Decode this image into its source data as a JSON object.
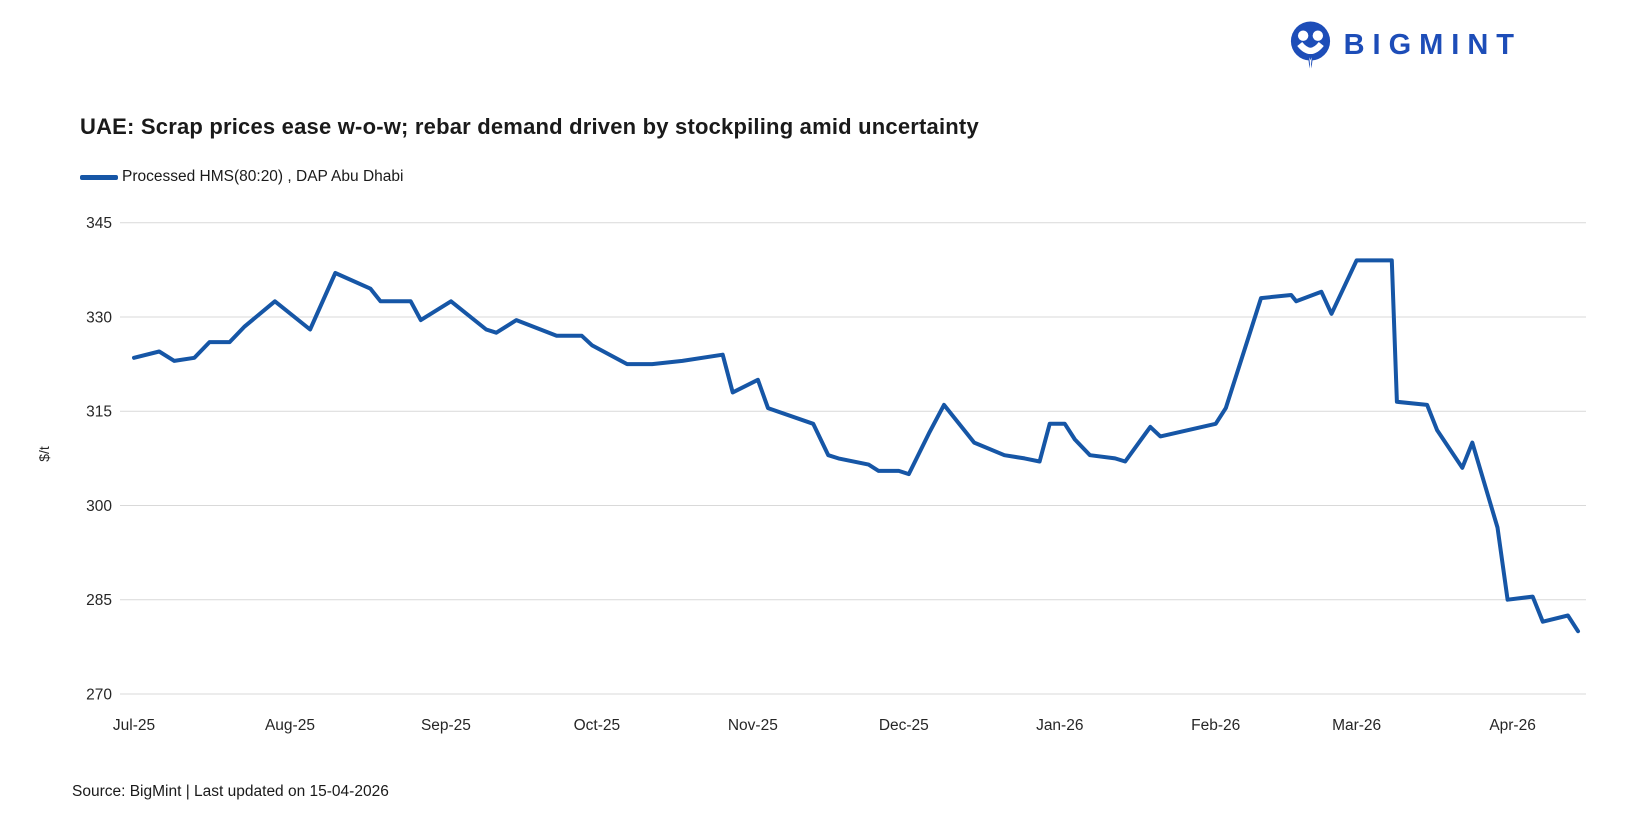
{
  "logo": {
    "text": "BIGMINT",
    "color": "#1d4db8",
    "icon": "bigmint-mascot-icon"
  },
  "chart": {
    "title": "UAE: Scrap prices ease w-o-w; rebar demand driven by stockpiling amid uncertainty",
    "legend": {
      "label": "Processed HMS(80:20) , DAP Abu Dhabi",
      "swatch_color": "#1656a6"
    },
    "ylabel": "$/t",
    "source_note": "Source: BigMint | Last updated on 15-04-2026"
  },
  "chart_data": {
    "type": "line",
    "title": "UAE: Scrap prices ease w-o-w; rebar demand driven by stockpiling amid uncertainty",
    "xlabel": "",
    "ylabel": "$/t",
    "ylim": [
      270,
      345
    ],
    "y_ticks": [
      270,
      285,
      300,
      315,
      330,
      345
    ],
    "x_ticks": [
      {
        "label": "Jul-25",
        "date": "2025-07-01"
      },
      {
        "label": "Aug-25",
        "date": "2025-08-01"
      },
      {
        "label": "Sep-25",
        "date": "2025-09-01"
      },
      {
        "label": "Oct-25",
        "date": "2025-10-01"
      },
      {
        "label": "Nov-25",
        "date": "2025-11-01"
      },
      {
        "label": "Dec-25",
        "date": "2025-12-01"
      },
      {
        "label": "Jan-26",
        "date": "2026-01-01"
      },
      {
        "label": "Feb-26",
        "date": "2026-02-01"
      },
      {
        "label": "Mar-26",
        "date": "2026-03-01"
      },
      {
        "label": "Apr-26",
        "date": "2026-04-01"
      }
    ],
    "x_domain": [
      "2025-07-01",
      "2026-04-14"
    ],
    "grid": "horizontal",
    "legend_position": "top-left",
    "line_color": "#1656a6",
    "series": [
      {
        "name": "Processed HMS(80:20) , DAP Abu Dhabi",
        "points": [
          {
            "date": "2025-07-01",
            "value": 323.5
          },
          {
            "date": "2025-07-06",
            "value": 324.5
          },
          {
            "date": "2025-07-09",
            "value": 323
          },
          {
            "date": "2025-07-13",
            "value": 323.5
          },
          {
            "date": "2025-07-16",
            "value": 326
          },
          {
            "date": "2025-07-20",
            "value": 326
          },
          {
            "date": "2025-07-23",
            "value": 328.5
          },
          {
            "date": "2025-07-29",
            "value": 332.5
          },
          {
            "date": "2025-08-05",
            "value": 328
          },
          {
            "date": "2025-08-10",
            "value": 337
          },
          {
            "date": "2025-08-17",
            "value": 334.5
          },
          {
            "date": "2025-08-19",
            "value": 332.5
          },
          {
            "date": "2025-08-25",
            "value": 332.5
          },
          {
            "date": "2025-08-27",
            "value": 329.5
          },
          {
            "date": "2025-09-02",
            "value": 332.5
          },
          {
            "date": "2025-09-09",
            "value": 328
          },
          {
            "date": "2025-09-11",
            "value": 327.5
          },
          {
            "date": "2025-09-15",
            "value": 329.5
          },
          {
            "date": "2025-09-23",
            "value": 327
          },
          {
            "date": "2025-09-28",
            "value": 327
          },
          {
            "date": "2025-09-30",
            "value": 325.5
          },
          {
            "date": "2025-10-07",
            "value": 322.5
          },
          {
            "date": "2025-10-12",
            "value": 322.5
          },
          {
            "date": "2025-10-18",
            "value": 323
          },
          {
            "date": "2025-10-26",
            "value": 324
          },
          {
            "date": "2025-10-28",
            "value": 318
          },
          {
            "date": "2025-11-02",
            "value": 320
          },
          {
            "date": "2025-11-04",
            "value": 315.5
          },
          {
            "date": "2025-11-13",
            "value": 313
          },
          {
            "date": "2025-11-16",
            "value": 308
          },
          {
            "date": "2025-11-18",
            "value": 307.5
          },
          {
            "date": "2025-11-24",
            "value": 306.5
          },
          {
            "date": "2025-11-26",
            "value": 305.5
          },
          {
            "date": "2025-11-30",
            "value": 305.5
          },
          {
            "date": "2025-12-02",
            "value": 305
          },
          {
            "date": "2025-12-06",
            "value": 311.5
          },
          {
            "date": "2025-12-09",
            "value": 316
          },
          {
            "date": "2025-12-15",
            "value": 310
          },
          {
            "date": "2025-12-21",
            "value": 308
          },
          {
            "date": "2025-12-25",
            "value": 307.5
          },
          {
            "date": "2025-12-28",
            "value": 307
          },
          {
            "date": "2025-12-30",
            "value": 313
          },
          {
            "date": "2026-01-02",
            "value": 313
          },
          {
            "date": "2026-01-04",
            "value": 310.5
          },
          {
            "date": "2026-01-07",
            "value": 308
          },
          {
            "date": "2026-01-12",
            "value": 307.5
          },
          {
            "date": "2026-01-14",
            "value": 307
          },
          {
            "date": "2026-01-19",
            "value": 312.5
          },
          {
            "date": "2026-01-21",
            "value": 311
          },
          {
            "date": "2026-02-01",
            "value": 313
          },
          {
            "date": "2026-02-03",
            "value": 315.5
          },
          {
            "date": "2026-02-08",
            "value": 328
          },
          {
            "date": "2026-02-10",
            "value": 333
          },
          {
            "date": "2026-02-16",
            "value": 333.5
          },
          {
            "date": "2026-02-17",
            "value": 332.5
          },
          {
            "date": "2026-02-22",
            "value": 334
          },
          {
            "date": "2026-02-24",
            "value": 330.5
          },
          {
            "date": "2026-03-01",
            "value": 339
          },
          {
            "date": "2026-03-08",
            "value": 339
          },
          {
            "date": "2026-03-09",
            "value": 316.5
          },
          {
            "date": "2026-03-15",
            "value": 316
          },
          {
            "date": "2026-03-17",
            "value": 312
          },
          {
            "date": "2026-03-22",
            "value": 306
          },
          {
            "date": "2026-03-24",
            "value": 310
          },
          {
            "date": "2026-03-29",
            "value": 296.5
          },
          {
            "date": "2026-03-31",
            "value": 285
          },
          {
            "date": "2026-04-05",
            "value": 285.5
          },
          {
            "date": "2026-04-07",
            "value": 281.5
          },
          {
            "date": "2026-04-12",
            "value": 282.5
          },
          {
            "date": "2026-04-14",
            "value": 280
          }
        ]
      }
    ]
  }
}
